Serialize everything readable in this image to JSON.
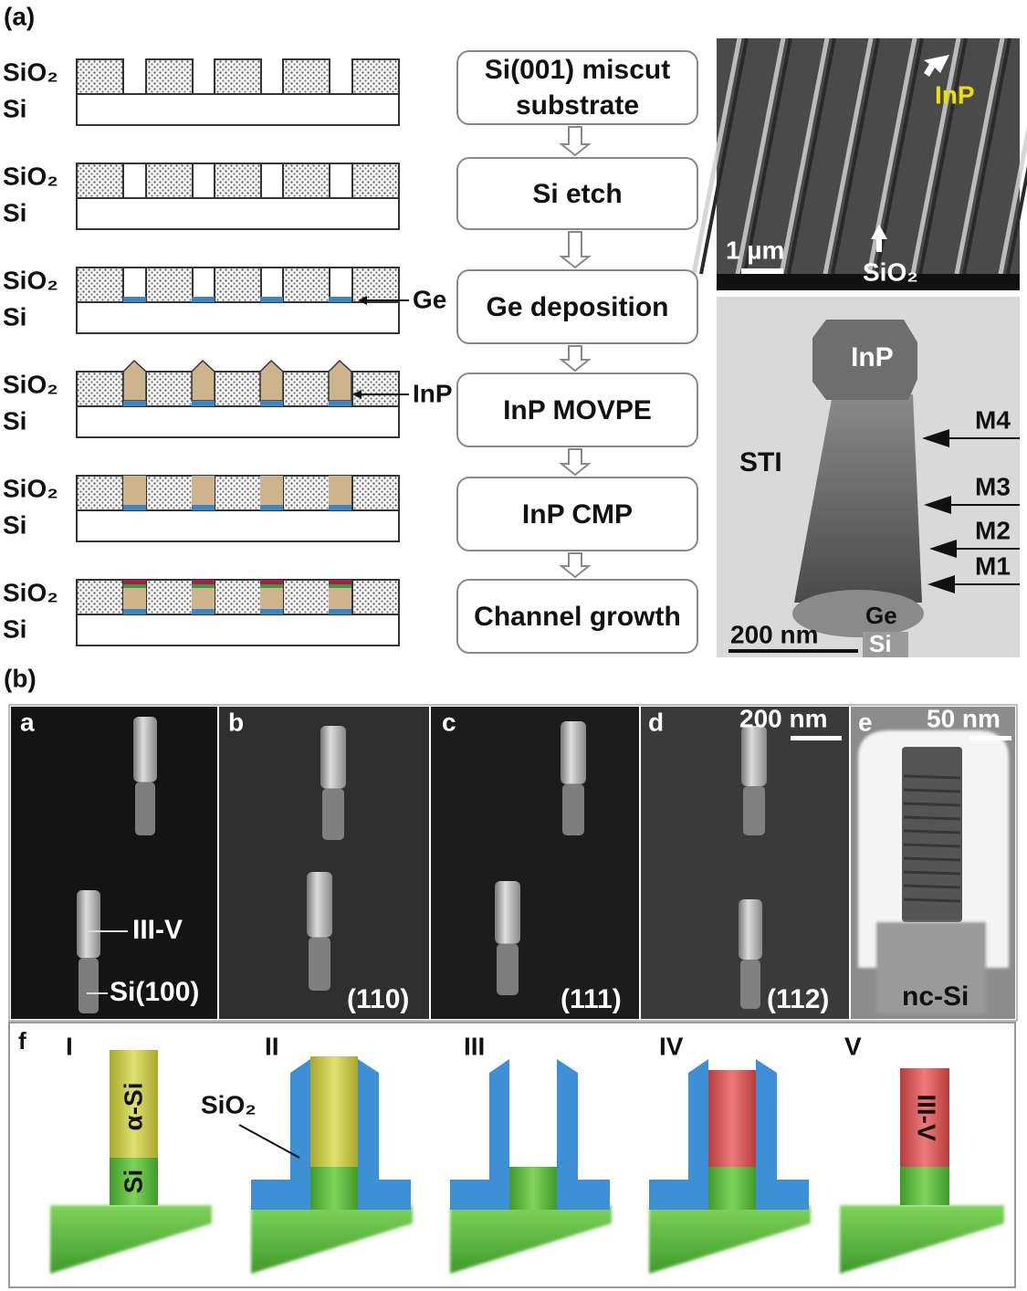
{
  "panel_a": {
    "label": "(a)",
    "schematic": {
      "rows": [
        {
          "oxide": "SiO₂",
          "substrate": "Si"
        },
        {
          "oxide": "SiO₂",
          "substrate": "Si"
        },
        {
          "oxide": "SiO₂",
          "substrate": "Si"
        },
        {
          "oxide": "SiO₂",
          "substrate": "Si"
        },
        {
          "oxide": "SiO₂",
          "substrate": "Si"
        },
        {
          "oxide": "SiO₂",
          "substrate": "Si"
        }
      ],
      "ge_label": "Ge",
      "inp_label": "InP"
    },
    "process_steps": [
      "Si(001) miscut substrate",
      "Si etch",
      "Ge deposition",
      "InP MOVPE",
      "InP CMP",
      "Channel growth"
    ],
    "sem": {
      "material": "InP",
      "scale_bar": "1 µm",
      "oxide": "SiO₂"
    },
    "tem": {
      "material": "InP",
      "isolation": "STI",
      "markers": [
        "M4",
        "M3",
        "M2",
        "M1"
      ],
      "seed": "Ge",
      "scale_bar": "200 nm",
      "substrate": "Si"
    }
  },
  "panel_b": {
    "label": "(b)",
    "images": [
      {
        "label": "a",
        "annotations": [
          "III-V",
          "Si(100)"
        ]
      },
      {
        "label": "b",
        "orientation": "(110)"
      },
      {
        "label": "c",
        "orientation": "(111)"
      },
      {
        "label": "d",
        "orientation": "(112)",
        "scale_bar": "200 nm"
      },
      {
        "label": "e",
        "scale_bar": "50 nm",
        "material": "nc-Si"
      }
    ],
    "schematic": {
      "label": "f",
      "steps": [
        {
          "numeral": "I",
          "labels": [
            "α-Si",
            "Si"
          ]
        },
        {
          "numeral": "II",
          "labels": [
            "SiO₂"
          ]
        },
        {
          "numeral": "III"
        },
        {
          "numeral": "IV"
        },
        {
          "numeral": "V",
          "labels": [
            "III-V"
          ]
        }
      ]
    }
  }
}
